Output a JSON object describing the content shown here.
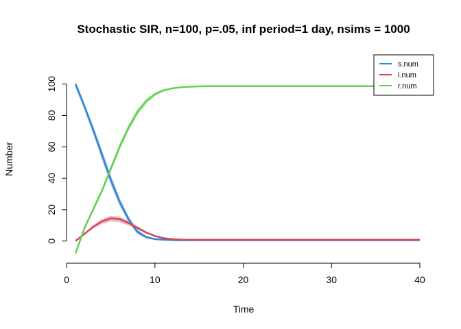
{
  "chart_data": {
    "type": "line",
    "title": "Stochastic SIR, n=100, p=.05, inf period=1 day, nsims = 1000",
    "xlabel": "Time",
    "ylabel": "Number",
    "xlim": [
      1,
      40
    ],
    "ylim": [
      -8,
      102
    ],
    "xticks": [
      0,
      10,
      20,
      30,
      40
    ],
    "yticks": [
      0,
      20,
      40,
      60,
      80,
      100
    ],
    "grid": false,
    "legend_position": "top-right",
    "x": [
      1,
      2,
      3,
      4,
      5,
      6,
      7,
      8,
      9,
      10,
      11,
      12,
      13,
      14,
      15,
      16,
      17,
      18,
      19,
      20,
      21,
      22,
      23,
      24,
      25,
      26,
      27,
      28,
      29,
      30,
      31,
      32,
      33,
      34,
      35,
      36,
      37,
      38,
      39,
      40
    ],
    "series": [
      {
        "name": "s.num",
        "color": "#2f86d6",
        "band_color": "#7fb3e8",
        "values": [
          100,
          86,
          71,
          55,
          39,
          25,
          14,
          6,
          2.5,
          1.2,
          0.8,
          0.6,
          0.5,
          0.5,
          0.5,
          0.5,
          0.5,
          0.5,
          0.5,
          0.5,
          0.5,
          0.5,
          0.5,
          0.5,
          0.5,
          0.5,
          0.5,
          0.5,
          0.5,
          0.5,
          0.5,
          0.5,
          0.5,
          0.5,
          0.5,
          0.5,
          0.5,
          0.5,
          0.5,
          0.5
        ],
        "lower": [
          98,
          84,
          68.5,
          52,
          36,
          22.5,
          12,
          4.5,
          1.7,
          0.8,
          0.5,
          0.4,
          0.3,
          0.3,
          0.3,
          0.3,
          0.3,
          0.3,
          0.3,
          0.3,
          0.3,
          0.3,
          0.3,
          0.3,
          0.3,
          0.3,
          0.3,
          0.3,
          0.3,
          0.3,
          0.3,
          0.3,
          0.3,
          0.3,
          0.3,
          0.3,
          0.3,
          0.3,
          0.3,
          0.3
        ],
        "upper": [
          102,
          88,
          73.5,
          58,
          42,
          27.5,
          16,
          7.5,
          3.3,
          1.6,
          1.1,
          0.8,
          0.7,
          0.7,
          0.7,
          0.7,
          0.7,
          0.7,
          0.7,
          0.7,
          0.7,
          0.7,
          0.7,
          0.7,
          0.7,
          0.7,
          0.7,
          0.7,
          0.7,
          0.7,
          0.7,
          0.7,
          0.7,
          0.7,
          0.7,
          0.7,
          0.7,
          0.7,
          0.7,
          0.7
        ]
      },
      {
        "name": "i.num",
        "color": "#d9435b",
        "band_color": "#e6a0aa",
        "values": [
          0,
          4.5,
          9,
          12.5,
          14.5,
          14,
          11.5,
          8.5,
          5.5,
          3.2,
          1.8,
          1.2,
          0.9,
          0.8,
          0.8,
          0.8,
          0.8,
          0.8,
          0.8,
          0.8,
          0.8,
          0.8,
          0.8,
          0.8,
          0.8,
          0.8,
          0.8,
          0.8,
          0.8,
          0.8,
          0.8,
          0.8,
          0.8,
          0.8,
          0.8,
          0.8,
          0.8,
          0.8,
          0.8,
          0.8
        ],
        "lower": [
          0,
          4,
          8,
          11,
          12.5,
          12,
          10,
          7.5,
          4.8,
          2.8,
          1.5,
          1,
          0.7,
          0.6,
          0.6,
          0.6,
          0.6,
          0.6,
          0.6,
          0.6,
          0.6,
          0.6,
          0.6,
          0.6,
          0.6,
          0.6,
          0.6,
          0.6,
          0.6,
          0.6,
          0.6,
          0.6,
          0.6,
          0.6,
          0.6,
          0.6,
          0.6,
          0.6,
          0.6,
          0.6
        ],
        "upper": [
          0,
          5,
          10,
          14,
          16,
          15.5,
          13,
          9.5,
          6.2,
          3.6,
          2.1,
          1.4,
          1.1,
          1,
          1,
          1,
          1,
          1,
          1,
          1,
          1,
          1,
          1,
          1,
          1,
          1,
          1,
          1,
          1,
          1,
          1,
          1,
          1,
          1,
          1,
          1,
          1,
          1,
          1,
          1
        ]
      },
      {
        "name": "r.num",
        "color": "#61d04f",
        "band_color": "#a8e39f",
        "values": [
          -8,
          8,
          20,
          32,
          46,
          60,
          72,
          82,
          89,
          93.5,
          96,
          97.3,
          98,
          98.3,
          98.5,
          98.6,
          98.6,
          98.6,
          98.6,
          98.6,
          98.6,
          98.6,
          98.6,
          98.6,
          98.6,
          98.6,
          98.6,
          98.6,
          98.6,
          98.6,
          98.6,
          98.6,
          98.6,
          98.6,
          98.6,
          98.6,
          98.6,
          98.6,
          98.6,
          98.6
        ],
        "lower": [
          -8,
          7,
          18.5,
          30.5,
          44,
          58,
          70,
          80,
          87.5,
          92.5,
          95.3,
          96.8,
          97.6,
          98,
          98.2,
          98.3,
          98.3,
          98.3,
          98.3,
          98.3,
          98.3,
          98.3,
          98.3,
          98.3,
          98.3,
          98.3,
          98.3,
          98.3,
          98.3,
          98.3,
          98.3,
          98.3,
          98.3,
          98.3,
          98.3,
          98.3,
          98.3,
          98.3,
          98.3,
          98.3
        ],
        "upper": [
          -8,
          9,
          21.5,
          33.5,
          48,
          62,
          74,
          84,
          90.5,
          94.5,
          96.7,
          97.8,
          98.4,
          98.6,
          98.8,
          98.9,
          98.9,
          98.9,
          98.9,
          98.9,
          98.9,
          98.9,
          98.9,
          98.9,
          98.9,
          98.9,
          98.9,
          98.9,
          98.9,
          98.9,
          98.9,
          98.9,
          98.9,
          98.9,
          98.9,
          98.9,
          98.9,
          98.9,
          98.9,
          98.9
        ]
      }
    ]
  }
}
